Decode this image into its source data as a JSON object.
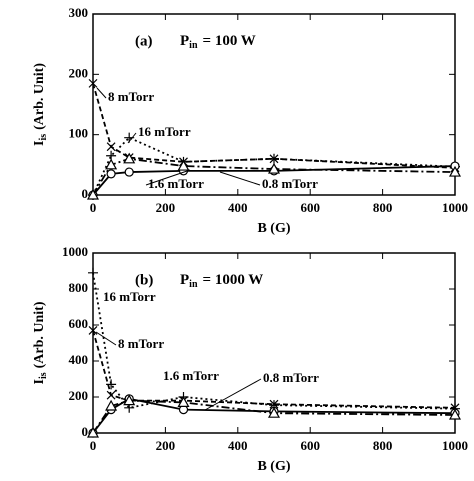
{
  "chart_data": [
    {
      "type": "line",
      "panel_label": "(a)",
      "power_label": {
        "main": "P",
        "sub": "in",
        "rest": "= 100 W"
      },
      "x_label": "B (G)",
      "y_label": {
        "main": "I",
        "sub": "is",
        "rest": "(Arb. Unit)"
      },
      "x": [
        0,
        50,
        100,
        250,
        500,
        1000
      ],
      "xlim": [
        0,
        1000
      ],
      "xticks": [
        0,
        200,
        400,
        600,
        800,
        1000
      ],
      "ylim": [
        0,
        300
      ],
      "yticks": [
        0,
        100,
        200,
        300
      ],
      "series": [
        {
          "name": "8 mTorr",
          "color": "#000000",
          "marker": "x",
          "dash": "5 3",
          "values": [
            185,
            80,
            62,
            55,
            60,
            45
          ]
        },
        {
          "name": "16 mTorr",
          "color": "#000000",
          "marker": "plus",
          "dash": "2 3",
          "values": [
            0,
            65,
            95,
            55,
            60,
            47
          ]
        },
        {
          "name": "1.6 mTorr",
          "color": "#000000",
          "marker": "circle",
          "dash": "none",
          "values": [
            0,
            35,
            38,
            40,
            40,
            48
          ]
        },
        {
          "name": "0.8 mTorr",
          "color": "#000000",
          "marker": "triangle",
          "dash": "8 3 2 3",
          "values": [
            0,
            50,
            60,
            48,
            43,
            38
          ]
        }
      ]
    },
    {
      "type": "line",
      "panel_label": "(b)",
      "power_label": {
        "main": "P",
        "sub": "in",
        "rest": "= 1000 W"
      },
      "x_label": "B (G)",
      "y_label": {
        "main": "I",
        "sub": "is",
        "rest": "(Arb. Unit)"
      },
      "x": [
        0,
        50,
        100,
        250,
        500,
        1000
      ],
      "xlim": [
        0,
        1000
      ],
      "xticks": [
        0,
        200,
        400,
        600,
        800,
        1000
      ],
      "ylim": [
        0,
        1000
      ],
      "yticks": [
        0,
        200,
        400,
        600,
        800,
        1000
      ],
      "series": [
        {
          "name": "16 mTorr",
          "color": "#000000",
          "marker": "plus",
          "dash": "2 3",
          "values": [
            890,
            270,
            140,
            200,
            155,
            135
          ]
        },
        {
          "name": "8 mTorr",
          "color": "#000000",
          "marker": "x",
          "dash": "5 3",
          "values": [
            570,
            210,
            180,
            180,
            160,
            140
          ]
        },
        {
          "name": "1.6 mTorr",
          "color": "#000000",
          "marker": "circle",
          "dash": "none",
          "values": [
            0,
            130,
            190,
            130,
            120,
            110
          ]
        },
        {
          "name": "0.8 mTorr",
          "color": "#000000",
          "marker": "triangle",
          "dash": "8 3 2 3",
          "values": [
            0,
            150,
            180,
            170,
            110,
            100
          ]
        }
      ]
    }
  ]
}
